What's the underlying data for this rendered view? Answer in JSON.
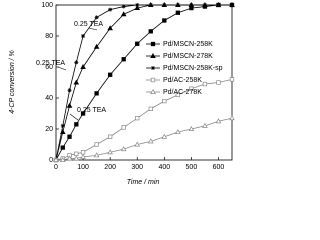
{
  "chart_data": {
    "type": "line",
    "x_label": "Time / min",
    "y_label": "4-CP conversion / %",
    "annotations": [
      "0.25 TEA",
      "0.25 TEA",
      "0.25 TEA"
    ],
    "x": [
      0,
      25,
      50,
      75,
      100,
      150,
      200,
      250,
      300,
      350,
      400,
      450,
      500,
      550,
      600,
      650
    ],
    "series": [
      {
        "name": "Pd/MSCN-258K",
        "color": "#000000",
        "marker": "square",
        "values": [
          0,
          8,
          15,
          23,
          30,
          43,
          55,
          65,
          75,
          83,
          90,
          95,
          98,
          99,
          100,
          100
        ]
      },
      {
        "name": "Pd/MSCN-278K",
        "color": "#000000",
        "marker": "triangle",
        "values": [
          0,
          18,
          35,
          50,
          60,
          73,
          85,
          94,
          98,
          100,
          100,
          100,
          100,
          100,
          100,
          100
        ]
      },
      {
        "name": "Pd/MSCN-258K-sp",
        "color": "#000000",
        "marker": "star",
        "values": [
          0,
          22,
          45,
          63,
          80,
          92,
          97,
          99,
          100,
          100,
          100,
          100,
          100,
          100,
          100,
          100
        ]
      },
      {
        "name": "Pd/AC-258K",
        "color": "#888888",
        "marker": "open-square",
        "values": [
          0,
          1,
          3,
          4,
          5,
          10,
          15,
          21,
          27,
          33,
          38,
          42,
          46,
          49,
          50,
          52
        ]
      },
      {
        "name": "Pd/AC-278K",
        "color": "#888888",
        "marker": "open-triangle",
        "values": [
          0,
          0,
          1,
          1,
          2,
          3,
          5,
          7,
          10,
          12,
          15,
          18,
          20,
          22,
          25,
          27
        ]
      }
    ],
    "xlim": [
      0,
      650
    ],
    "xticks": [
      0,
      100,
      200,
      300,
      400,
      500,
      600
    ],
    "ylim": [
      0,
      100
    ],
    "yticks": [
      0,
      20,
      40,
      60,
      80,
      100
    ],
    "legend": "right"
  }
}
